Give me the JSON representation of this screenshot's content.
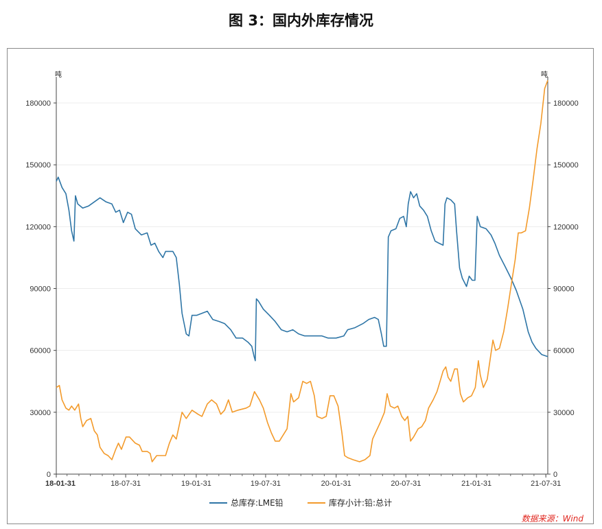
{
  "figure_title": "图 3：国内外库存情况",
  "source_note": "数据来源：Wind",
  "chart_data": {
    "type": "line",
    "left_unit": "吨",
    "right_unit": "吨",
    "y_left_lim": [
      0,
      190000
    ],
    "y_right_lim": [
      0,
      190000
    ],
    "y_ticks": [
      "0",
      "30000",
      "60000",
      "90000",
      "120000",
      "150000",
      "180000"
    ],
    "y_tick_values": [
      0,
      30000,
      60000,
      90000,
      120000,
      150000,
      180000
    ],
    "x_tick_labels": [
      "18-01-31",
      "18-07-31",
      "19-01-31",
      "19-07-31",
      "20-01-31",
      "20-07-31",
      "21-01-31",
      "21-07-31"
    ],
    "x_tick_dates": [
      "2018-01-31",
      "2018-07-31",
      "2019-01-31",
      "2019-07-31",
      "2020-01-31",
      "2020-07-31",
      "2021-01-31",
      "2021-07-31"
    ],
    "x_range": [
      "2018-01-31",
      "2021-08-05"
    ],
    "legend_position": "bottom",
    "grid": true,
    "series": [
      {
        "name": "总库存:LME铅",
        "axis": "left",
        "color": "#2e75a6",
        "points": [
          [
            "2018-01-31",
            142000
          ],
          [
            "2018-02-05",
            144000
          ],
          [
            "2018-02-15",
            139000
          ],
          [
            "2018-02-25",
            136000
          ],
          [
            "2018-03-05",
            128000
          ],
          [
            "2018-03-12",
            118000
          ],
          [
            "2018-03-18",
            113000
          ],
          [
            "2018-03-22",
            135000
          ],
          [
            "2018-03-28",
            131000
          ],
          [
            "2018-04-10",
            129000
          ],
          [
            "2018-04-25",
            130000
          ],
          [
            "2018-05-10",
            132000
          ],
          [
            "2018-05-25",
            134000
          ],
          [
            "2018-06-10",
            132000
          ],
          [
            "2018-06-25",
            131000
          ],
          [
            "2018-07-05",
            127000
          ],
          [
            "2018-07-15",
            128000
          ],
          [
            "2018-07-25",
            122000
          ],
          [
            "2018-08-05",
            127000
          ],
          [
            "2018-08-15",
            126000
          ],
          [
            "2018-08-25",
            119000
          ],
          [
            "2018-09-10",
            116000
          ],
          [
            "2018-09-25",
            117000
          ],
          [
            "2018-10-05",
            111000
          ],
          [
            "2018-10-15",
            112000
          ],
          [
            "2018-10-25",
            108000
          ],
          [
            "2018-11-05",
            105000
          ],
          [
            "2018-11-12",
            108000
          ],
          [
            "2018-11-20",
            108000
          ],
          [
            "2018-12-01",
            108000
          ],
          [
            "2018-12-10",
            105000
          ],
          [
            "2018-12-18",
            92000
          ],
          [
            "2018-12-25",
            78000
          ],
          [
            "2019-01-05",
            68000
          ],
          [
            "2019-01-12",
            67000
          ],
          [
            "2019-01-20",
            77000
          ],
          [
            "2019-02-01",
            77000
          ],
          [
            "2019-02-15",
            78000
          ],
          [
            "2019-03-01",
            79000
          ],
          [
            "2019-03-15",
            75000
          ],
          [
            "2019-04-01",
            74000
          ],
          [
            "2019-04-15",
            73000
          ],
          [
            "2019-05-01",
            70000
          ],
          [
            "2019-05-15",
            66000
          ],
          [
            "2019-06-01",
            66000
          ],
          [
            "2019-06-15",
            64000
          ],
          [
            "2019-06-25",
            62000
          ],
          [
            "2019-07-01",
            57000
          ],
          [
            "2019-07-04",
            55000
          ],
          [
            "2019-07-07",
            85000
          ],
          [
            "2019-07-12",
            84000
          ],
          [
            "2019-07-25",
            80000
          ],
          [
            "2019-08-10",
            77000
          ],
          [
            "2019-08-25",
            74000
          ],
          [
            "2019-09-10",
            70000
          ],
          [
            "2019-09-25",
            69000
          ],
          [
            "2019-10-10",
            70000
          ],
          [
            "2019-10-25",
            68000
          ],
          [
            "2019-11-10",
            67000
          ],
          [
            "2019-11-25",
            67000
          ],
          [
            "2019-12-10",
            67000
          ],
          [
            "2019-12-25",
            67000
          ],
          [
            "2020-01-10",
            66000
          ],
          [
            "2020-01-31",
            66000
          ],
          [
            "2020-02-20",
            67000
          ],
          [
            "2020-03-01",
            70000
          ],
          [
            "2020-03-20",
            71000
          ],
          [
            "2020-04-10",
            73000
          ],
          [
            "2020-04-25",
            75000
          ],
          [
            "2020-05-10",
            76000
          ],
          [
            "2020-05-20",
            75000
          ],
          [
            "2020-05-28",
            68000
          ],
          [
            "2020-06-03",
            62000
          ],
          [
            "2020-06-10",
            62000
          ],
          [
            "2020-06-15",
            115000
          ],
          [
            "2020-06-22",
            118000
          ],
          [
            "2020-07-05",
            119000
          ],
          [
            "2020-07-15",
            124000
          ],
          [
            "2020-07-25",
            125000
          ],
          [
            "2020-08-01",
            120000
          ],
          [
            "2020-08-06",
            131000
          ],
          [
            "2020-08-12",
            137000
          ],
          [
            "2020-08-20",
            134000
          ],
          [
            "2020-08-28",
            136000
          ],
          [
            "2020-09-05",
            130000
          ],
          [
            "2020-09-15",
            128000
          ],
          [
            "2020-09-25",
            125000
          ],
          [
            "2020-10-05",
            118000
          ],
          [
            "2020-10-15",
            113000
          ],
          [
            "2020-10-25",
            112000
          ],
          [
            "2020-11-05",
            111000
          ],
          [
            "2020-11-10",
            131000
          ],
          [
            "2020-11-15",
            134000
          ],
          [
            "2020-11-25",
            133000
          ],
          [
            "2020-12-05",
            131000
          ],
          [
            "2020-12-10",
            118000
          ],
          [
            "2020-12-18",
            100000
          ],
          [
            "2020-12-25",
            95000
          ],
          [
            "2021-01-05",
            91000
          ],
          [
            "2021-01-12",
            96000
          ],
          [
            "2021-01-20",
            94000
          ],
          [
            "2021-01-27",
            94000
          ],
          [
            "2021-02-02",
            125000
          ],
          [
            "2021-02-10",
            120000
          ],
          [
            "2021-02-25",
            119000
          ],
          [
            "2021-03-10",
            116000
          ],
          [
            "2021-03-20",
            112000
          ],
          [
            "2021-04-01",
            106000
          ],
          [
            "2021-04-15",
            101000
          ],
          [
            "2021-05-01",
            95000
          ],
          [
            "2021-05-15",
            89000
          ],
          [
            "2021-06-01",
            80000
          ],
          [
            "2021-06-15",
            69000
          ],
          [
            "2021-06-25",
            64000
          ],
          [
            "2021-07-05",
            61000
          ],
          [
            "2021-07-20",
            58000
          ],
          [
            "2021-08-05",
            57000
          ]
        ]
      },
      {
        "name": "库存小计:铅:总计",
        "axis": "right",
        "color": "#f39a2a",
        "points": [
          [
            "2018-01-31",
            42000
          ],
          [
            "2018-02-08",
            43000
          ],
          [
            "2018-02-15",
            36000
          ],
          [
            "2018-02-25",
            32000
          ],
          [
            "2018-03-05",
            31000
          ],
          [
            "2018-03-12",
            33000
          ],
          [
            "2018-03-20",
            31000
          ],
          [
            "2018-03-30",
            34000
          ],
          [
            "2018-04-05",
            27000
          ],
          [
            "2018-04-10",
            23000
          ],
          [
            "2018-04-20",
            26000
          ],
          [
            "2018-05-01",
            27000
          ],
          [
            "2018-05-10",
            21000
          ],
          [
            "2018-05-18",
            19000
          ],
          [
            "2018-05-25",
            13000
          ],
          [
            "2018-06-05",
            10000
          ],
          [
            "2018-06-15",
            9000
          ],
          [
            "2018-06-25",
            7000
          ],
          [
            "2018-07-05",
            12000
          ],
          [
            "2018-07-12",
            15000
          ],
          [
            "2018-07-20",
            12000
          ],
          [
            "2018-08-01",
            18000
          ],
          [
            "2018-08-10",
            18000
          ],
          [
            "2018-08-25",
            15000
          ],
          [
            "2018-09-05",
            14000
          ],
          [
            "2018-09-12",
            11000
          ],
          [
            "2018-09-25",
            11000
          ],
          [
            "2018-10-03",
            10000
          ],
          [
            "2018-10-08",
            6000
          ],
          [
            "2018-10-20",
            9000
          ],
          [
            "2018-11-01",
            9000
          ],
          [
            "2018-11-12",
            9000
          ],
          [
            "2018-11-22",
            15000
          ],
          [
            "2018-12-01",
            19000
          ],
          [
            "2018-12-10",
            17000
          ],
          [
            "2018-12-25",
            30000
          ],
          [
            "2019-01-05",
            27000
          ],
          [
            "2019-01-20",
            31000
          ],
          [
            "2019-02-05",
            29000
          ],
          [
            "2019-02-15",
            28000
          ],
          [
            "2019-03-01",
            34000
          ],
          [
            "2019-03-12",
            36000
          ],
          [
            "2019-03-25",
            34000
          ],
          [
            "2019-04-05",
            29000
          ],
          [
            "2019-04-15",
            31000
          ],
          [
            "2019-04-25",
            36000
          ],
          [
            "2019-05-05",
            30000
          ],
          [
            "2019-05-20",
            31000
          ],
          [
            "2019-06-10",
            32000
          ],
          [
            "2019-06-20",
            33000
          ],
          [
            "2019-07-02",
            40000
          ],
          [
            "2019-07-15",
            36000
          ],
          [
            "2019-07-25",
            32000
          ],
          [
            "2019-08-05",
            25000
          ],
          [
            "2019-08-15",
            20000
          ],
          [
            "2019-08-25",
            16000
          ],
          [
            "2019-09-05",
            16000
          ],
          [
            "2019-09-15",
            19000
          ],
          [
            "2019-09-25",
            22000
          ],
          [
            "2019-10-05",
            39000
          ],
          [
            "2019-10-12",
            35000
          ],
          [
            "2019-10-25",
            37000
          ],
          [
            "2019-11-05",
            45000
          ],
          [
            "2019-11-15",
            44000
          ],
          [
            "2019-11-25",
            45000
          ],
          [
            "2019-12-05",
            38000
          ],
          [
            "2019-12-12",
            28000
          ],
          [
            "2019-12-25",
            27000
          ],
          [
            "2020-01-05",
            28000
          ],
          [
            "2020-01-15",
            38000
          ],
          [
            "2020-01-25",
            38000
          ],
          [
            "2020-02-05",
            33000
          ],
          [
            "2020-02-15",
            20000
          ],
          [
            "2020-02-22",
            9000
          ],
          [
            "2020-03-01",
            8000
          ],
          [
            "2020-03-15",
            7000
          ],
          [
            "2020-04-01",
            6000
          ],
          [
            "2020-04-15",
            7000
          ],
          [
            "2020-04-28",
            9000
          ],
          [
            "2020-05-05",
            17000
          ],
          [
            "2020-05-15",
            21000
          ],
          [
            "2020-05-25",
            25000
          ],
          [
            "2020-06-05",
            30000
          ],
          [
            "2020-06-12",
            39000
          ],
          [
            "2020-06-20",
            33000
          ],
          [
            "2020-07-01",
            32000
          ],
          [
            "2020-07-10",
            33000
          ],
          [
            "2020-07-20",
            28000
          ],
          [
            "2020-07-28",
            26000
          ],
          [
            "2020-08-05",
            28000
          ],
          [
            "2020-08-12",
            16000
          ],
          [
            "2020-08-20",
            18000
          ],
          [
            "2020-09-01",
            22000
          ],
          [
            "2020-09-10",
            23000
          ],
          [
            "2020-09-20",
            26000
          ],
          [
            "2020-09-28",
            32000
          ],
          [
            "2020-10-10",
            36000
          ],
          [
            "2020-10-20",
            40000
          ],
          [
            "2020-10-28",
            45000
          ],
          [
            "2020-11-05",
            50000
          ],
          [
            "2020-11-12",
            52000
          ],
          [
            "2020-11-18",
            47000
          ],
          [
            "2020-11-25",
            45000
          ],
          [
            "2020-12-05",
            51000
          ],
          [
            "2020-12-12",
            51000
          ],
          [
            "2020-12-20",
            39000
          ],
          [
            "2020-12-28",
            35000
          ],
          [
            "2021-01-08",
            37000
          ],
          [
            "2021-01-18",
            38000
          ],
          [
            "2021-01-28",
            42000
          ],
          [
            "2021-02-05",
            55000
          ],
          [
            "2021-02-10",
            48000
          ],
          [
            "2021-02-18",
            42000
          ],
          [
            "2021-02-28",
            46000
          ],
          [
            "2021-03-08",
            56000
          ],
          [
            "2021-03-15",
            65000
          ],
          [
            "2021-03-22",
            60000
          ],
          [
            "2021-04-01",
            61000
          ],
          [
            "2021-04-12",
            69000
          ],
          [
            "2021-04-22",
            80000
          ],
          [
            "2021-05-02",
            92000
          ],
          [
            "2021-05-12",
            104000
          ],
          [
            "2021-05-20",
            117000
          ],
          [
            "2021-05-28",
            117000
          ],
          [
            "2021-06-08",
            118000
          ],
          [
            "2021-06-18",
            129000
          ],
          [
            "2021-06-28",
            143000
          ],
          [
            "2021-07-08",
            158000
          ],
          [
            "2021-07-18",
            170000
          ],
          [
            "2021-07-28",
            187000
          ],
          [
            "2021-08-05",
            191000
          ]
        ]
      }
    ]
  }
}
